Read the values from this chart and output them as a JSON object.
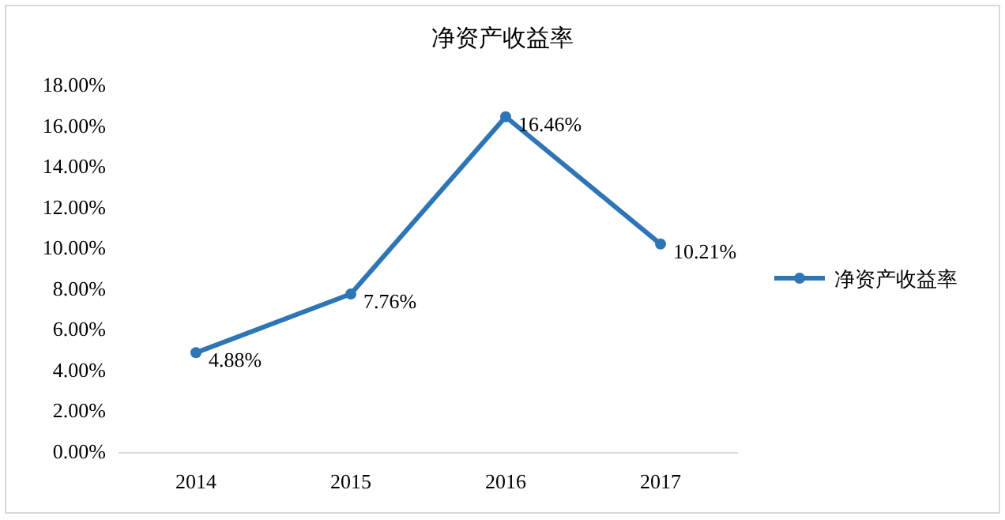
{
  "chart_data": {
    "type": "line",
    "title": "净资产收益率",
    "categories": [
      "2014",
      "2015",
      "2016",
      "2017"
    ],
    "series": [
      {
        "name": "净资产收益率",
        "color": "#2e75b6",
        "values": [
          4.88,
          7.76,
          16.46,
          10.21
        ],
        "value_labels": [
          "4.88%",
          "7.76%",
          "16.46%",
          "10.21%"
        ]
      }
    ],
    "ylim": [
      0,
      18
    ],
    "yticks": [
      {
        "value": 0,
        "label": "0.00%"
      },
      {
        "value": 2,
        "label": "2.00%"
      },
      {
        "value": 4,
        "label": "4.00%"
      },
      {
        "value": 6,
        "label": "6.00%"
      },
      {
        "value": 8,
        "label": "8.00%"
      },
      {
        "value": 10,
        "label": "10.00%"
      },
      {
        "value": 12,
        "label": "12.00%"
      },
      {
        "value": 14,
        "label": "14.00%"
      },
      {
        "value": 16,
        "label": "16.00%"
      },
      {
        "value": 18,
        "label": "18.00%"
      }
    ],
    "legend": "right",
    "marker": "circle",
    "line_style": "solid",
    "grid": false
  }
}
